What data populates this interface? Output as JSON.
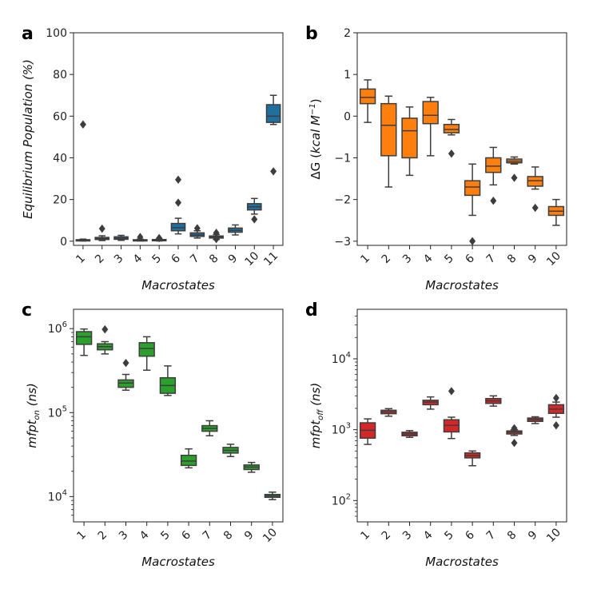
{
  "chart_data": [
    {
      "id": "a",
      "type": "box",
      "panel_letter": "a",
      "color": "#1f6f9f",
      "xlabel": "Macrostates",
      "ylabel": "Equilibrium Population (%)",
      "yscale": "linear",
      "ylim": [
        -2,
        100
      ],
      "yticks": [
        0,
        20,
        40,
        60,
        80,
        100
      ],
      "yticklabels": [
        "0",
        "20",
        "40",
        "60",
        "80",
        "100"
      ],
      "categories": [
        "1",
        "2",
        "3",
        "4",
        "5",
        "6",
        "7",
        "8",
        "9",
        "10",
        "11"
      ],
      "boxes": [
        {
          "min": 0.1,
          "q1": 0.2,
          "median": 0.4,
          "q3": 0.7,
          "max": 1.0,
          "outliers": [
            56
          ]
        },
        {
          "min": 0.3,
          "q1": 0.8,
          "median": 1.2,
          "q3": 1.8,
          "max": 2.6,
          "outliers": [
            6
          ]
        },
        {
          "min": 0.4,
          "q1": 0.9,
          "median": 1.4,
          "q3": 2.1,
          "max": 2.8,
          "outliers": []
        },
        {
          "min": 0.1,
          "q1": 0.2,
          "median": 0.4,
          "q3": 0.7,
          "max": 1.0,
          "outliers": [
            2
          ]
        },
        {
          "min": 0.1,
          "q1": 0.2,
          "median": 0.4,
          "q3": 0.8,
          "max": 1.1,
          "outliers": [
            1.5
          ]
        },
        {
          "min": 3.5,
          "q1": 5.0,
          "median": 6.5,
          "q3": 8.5,
          "max": 11,
          "outliers": [
            18.5,
            29.5
          ]
        },
        {
          "min": 1.5,
          "q1": 2.3,
          "median": 3.0,
          "q3": 4.0,
          "max": 5.0,
          "outliers": [
            6.2
          ]
        },
        {
          "min": 0.8,
          "q1": 1.5,
          "median": 2.0,
          "q3": 2.5,
          "max": 3.2,
          "outliers": [
            1.0,
            4.0
          ]
        },
        {
          "min": 3.0,
          "q1": 4.3,
          "median": 5.2,
          "q3": 6.3,
          "max": 7.8,
          "outliers": []
        },
        {
          "min": 13,
          "q1": 15,
          "median": 16.5,
          "q3": 18,
          "max": 20.5,
          "outliers": [
            10.5
          ]
        },
        {
          "min": 56,
          "q1": 57,
          "median": 60,
          "q3": 65.5,
          "max": 70,
          "outliers": [
            33.5
          ]
        }
      ]
    },
    {
      "id": "b",
      "type": "box",
      "panel_letter": "b",
      "color": "#ff7f0e",
      "xlabel": "Macrostates",
      "ylabel_prefix": "ΔG",
      "ylabel_unit": "kcal M",
      "ylabel_exp": "−1",
      "yscale": "linear",
      "ylim": [
        -3.1,
        2
      ],
      "yticks": [
        -3,
        -2,
        -1,
        0,
        1,
        2
      ],
      "yticklabels": [
        "−3",
        "−2",
        "−1",
        "0",
        "1",
        "2"
      ],
      "categories": [
        "1",
        "2",
        "3",
        "4",
        "5",
        "6",
        "7",
        "8",
        "9",
        "10"
      ],
      "boxes": [
        {
          "min": -0.15,
          "q1": 0.3,
          "median": 0.45,
          "q3": 0.65,
          "max": 0.87,
          "outliers": []
        },
        {
          "min": -1.7,
          "q1": -0.95,
          "median": -0.22,
          "q3": 0.3,
          "max": 0.48,
          "outliers": []
        },
        {
          "min": -1.42,
          "q1": -1.0,
          "median": -0.35,
          "q3": -0.05,
          "max": 0.22,
          "outliers": []
        },
        {
          "min": -0.95,
          "q1": -0.18,
          "median": 0.02,
          "q3": 0.35,
          "max": 0.45,
          "outliers": []
        },
        {
          "min": -0.45,
          "q1": -0.4,
          "median": -0.32,
          "q3": -0.2,
          "max": -0.08,
          "outliers": [
            -0.9
          ]
        },
        {
          "min": -2.38,
          "q1": -1.9,
          "median": -1.7,
          "q3": -1.55,
          "max": -1.15,
          "outliers": [
            -3.0
          ]
        },
        {
          "min": -1.65,
          "q1": -1.35,
          "median": -1.2,
          "q3": -1.0,
          "max": -0.75,
          "outliers": [
            -2.03
          ]
        },
        {
          "min": -1.15,
          "q1": -1.12,
          "median": -1.08,
          "q3": -1.03,
          "max": -0.98,
          "outliers": [
            -1.48
          ]
        },
        {
          "min": -1.75,
          "q1": -1.68,
          "median": -1.55,
          "q3": -1.45,
          "max": -1.22,
          "outliers": [
            -2.2
          ]
        },
        {
          "min": -2.62,
          "q1": -2.38,
          "median": -2.28,
          "q3": -2.17,
          "max": -2.0,
          "outliers": []
        }
      ]
    },
    {
      "id": "c",
      "type": "box",
      "panel_letter": "c",
      "color": "#2ca02c",
      "xlabel": "Macrostates",
      "ylabel_base": "mfpt",
      "ylabel_sub": "on",
      "ylabel_unit": "(ns)",
      "yscale": "log",
      "ylim": [
        5000,
        1700000
      ],
      "yticks": [
        10000,
        100000,
        1000000
      ],
      "yticklabels": [
        {
          "base": "10",
          "exp": "4"
        },
        {
          "base": "10",
          "exp": "5"
        },
        {
          "base": "10",
          "exp": "6"
        }
      ],
      "categories": [
        "1",
        "2",
        "3",
        "4",
        "5",
        "6",
        "7",
        "8",
        "9",
        "10"
      ],
      "boxes": [
        {
          "min": 480000,
          "q1": 650000,
          "median": 800000,
          "q3": 920000,
          "max": 990000,
          "outliers": []
        },
        {
          "min": 500000,
          "q1": 560000,
          "median": 610000,
          "q3": 660000,
          "max": 700000,
          "outliers": [
            980000
          ]
        },
        {
          "min": 185000,
          "q1": 200000,
          "median": 225000,
          "q3": 245000,
          "max": 285000,
          "outliers": [
            390000
          ]
        },
        {
          "min": 320000,
          "q1": 470000,
          "median": 580000,
          "q3": 680000,
          "max": 800000,
          "outliers": []
        },
        {
          "min": 160000,
          "q1": 170000,
          "median": 210000,
          "q3": 260000,
          "max": 360000,
          "outliers": []
        },
        {
          "min": 22000,
          "q1": 23500,
          "median": 26500,
          "q3": 31000,
          "max": 37000,
          "outliers": []
        },
        {
          "min": 53000,
          "q1": 60000,
          "median": 65000,
          "q3": 70000,
          "max": 80000,
          "outliers": []
        },
        {
          "min": 30000,
          "q1": 33000,
          "median": 35500,
          "q3": 38500,
          "max": 42000,
          "outliers": []
        },
        {
          "min": 19500,
          "q1": 21000,
          "median": 22500,
          "q3": 23800,
          "max": 25500,
          "outliers": []
        },
        {
          "min": 9200,
          "q1": 9800,
          "median": 10200,
          "q3": 10600,
          "max": 11300,
          "outliers": []
        }
      ]
    },
    {
      "id": "d",
      "type": "box",
      "panel_letter": "d",
      "color": "#d62728",
      "xlabel": "Macrostates",
      "ylabel_base": "mfpt",
      "ylabel_sub": "off",
      "ylabel_unit": "(ns)",
      "yscale": "log",
      "ylim": [
        50,
        50000
      ],
      "yticks": [
        100,
        1000,
        10000
      ],
      "yticklabels": [
        {
          "base": "10",
          "exp": "2"
        },
        {
          "base": "10",
          "exp": "3"
        },
        {
          "base": "10",
          "exp": "4"
        }
      ],
      "categories": [
        "1",
        "2",
        "3",
        "4",
        "5",
        "6",
        "7",
        "8",
        "9",
        "10"
      ],
      "boxes": [
        {
          "min": 620,
          "q1": 760,
          "median": 980,
          "q3": 1250,
          "max": 1420,
          "outliers": []
        },
        {
          "min": 1550,
          "q1": 1680,
          "median": 1780,
          "q3": 1880,
          "max": 1980,
          "outliers": []
        },
        {
          "min": 780,
          "q1": 820,
          "median": 870,
          "q3": 920,
          "max": 970,
          "outliers": []
        },
        {
          "min": 1950,
          "q1": 2250,
          "median": 2450,
          "q3": 2600,
          "max": 2900,
          "outliers": []
        },
        {
          "min": 750,
          "q1": 930,
          "median": 1150,
          "q3": 1380,
          "max": 1500,
          "outliers": [
            3500
          ]
        },
        {
          "min": 310,
          "q1": 400,
          "median": 430,
          "q3": 470,
          "max": 500,
          "outliers": []
        },
        {
          "min": 2150,
          "q1": 2350,
          "median": 2550,
          "q3": 2750,
          "max": 3000,
          "outliers": []
        },
        {
          "min": 830,
          "q1": 870,
          "median": 920,
          "q3": 960,
          "max": 1000,
          "outliers": [
            650,
            1050
          ]
        },
        {
          "min": 1220,
          "q1": 1310,
          "median": 1390,
          "q3": 1460,
          "max": 1520,
          "outliers": []
        },
        {
          "min": 1500,
          "q1": 1700,
          "median": 1950,
          "q3": 2250,
          "max": 2450,
          "outliers": [
            1150,
            2800
          ]
        }
      ]
    }
  ]
}
